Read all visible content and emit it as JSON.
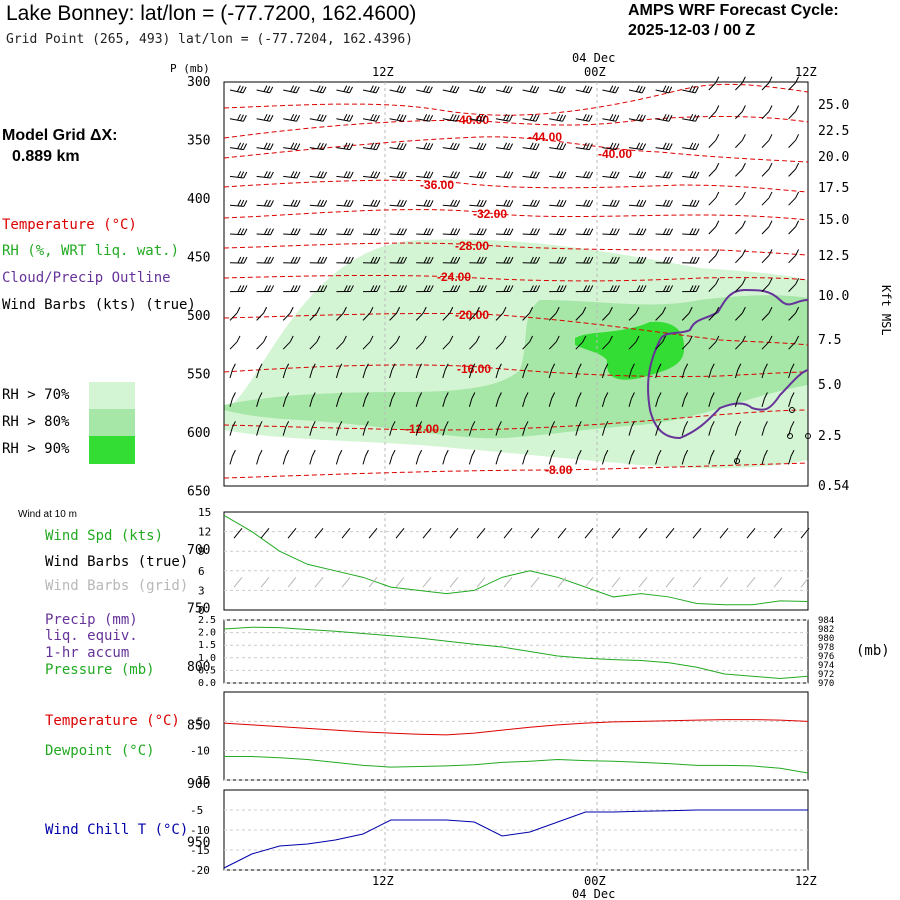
{
  "header": {
    "title": "Lake Bonney:  lat/lon = (-77.7200, 162.4600)",
    "subtitle": "Grid Point (265, 493) lat/lon = (-77.7204, 162.4396)",
    "forecast_line1": "AMPS WRF Forecast Cycle:",
    "forecast_line2": "2025-12-03 / 00  Z",
    "grid_label": "Model Grid ΔX:",
    "grid_value": "0.889 km"
  },
  "colors": {
    "temperature": "#dd0000",
    "rh": "#22aa22",
    "cloud": "#663399",
    "wind": "#000000",
    "wind_grid": "#b8b8b8",
    "rh70": "#d4f5d4",
    "rh80": "#a6e6a6",
    "rh90": "#33dd33",
    "windchill": "#0000aa"
  },
  "legend": {
    "temperature": "Temperature (°C)",
    "rh": "RH (%, WRT liq. wat.)",
    "cloud": "Cloud/Precip Outline",
    "wind": "Wind Barbs (kts) (true)",
    "rh70": "RH > 70%",
    "rh80": "RH > 80%",
    "rh90": "RH > 90%"
  },
  "panels": {
    "wind_header": "Wind at 10 m",
    "wind_spd": "Wind Spd (kts)",
    "wind_barbs_true": "Wind Barbs (true)",
    "wind_barbs_grid": "Wind Barbs (grid)",
    "precip1": "Precip (mm)",
    "precip2": "liq. equiv.",
    "precip3": "1-hr accum",
    "pressure": "Pressure (mb)",
    "pressure_unit": "(mb)",
    "temperature": "Temperature (°C)",
    "dewpoint": "Dewpoint (°C)",
    "windchill": "Wind Chill T (°C)"
  },
  "chart_data": [
    {
      "type": "area",
      "name": "vertical cross-section",
      "x_labels": [
        "12Z",
        "00Z",
        "12Z"
      ],
      "date_label": "04 Dec",
      "ylabel": "P (mb)",
      "ylabel_right": "Kft MSL",
      "pressure_levels": [
        300,
        350,
        400,
        450,
        500,
        550,
        600,
        650,
        700,
        750,
        800,
        850,
        900,
        950
      ],
      "kft_ticks": [
        "25.0",
        "22.5",
        "20.0",
        "17.5",
        "15.0",
        "12.5",
        "10.0",
        "7.5",
        "5.0",
        "2.5",
        "0.54"
      ],
      "temperature_labels": [
        "-40.00",
        "-44.00",
        "-40.00",
        "-36.00",
        "-32.00",
        "-28.00",
        "-24.00",
        "-20.00",
        "-16.00",
        "-12.00",
        "-8.00"
      ]
    },
    {
      "type": "line",
      "name": "wind speed 10 m",
      "ylim": [
        0,
        15
      ],
      "yticks": [
        "15",
        "12",
        "9",
        "6",
        "3",
        "0"
      ],
      "series": [
        {
          "name": "Wind Spd (kts)",
          "values": [
            14.5,
            12,
            9,
            7,
            6,
            5,
            3.5,
            3,
            2.5,
            3,
            5,
            6,
            5,
            3.5,
            2,
            2.5,
            2,
            1,
            0.8,
            0.8,
            1.4,
            1.3
          ]
        }
      ]
    },
    {
      "type": "line",
      "name": "precip and pressure",
      "ylim_left": [
        0,
        2.5
      ],
      "yticks_left": [
        "2.5",
        "2.0",
        "1.5",
        "1.0",
        "0.5",
        "0.0"
      ],
      "ylim_right": [
        970,
        984
      ],
      "yticks_right": [
        "984",
        "982",
        "980",
        "978",
        "976",
        "974",
        "972",
        "970"
      ],
      "series": [
        {
          "name": "Pressure (mb)",
          "values": [
            982.0,
            982.4,
            982.3,
            981.9,
            981.5,
            981.0,
            980.5,
            980.0,
            979.3,
            978.6,
            978.0,
            977.0,
            976.0,
            975.5,
            975.2,
            975.0,
            974.5,
            973.5,
            972.0,
            971.5,
            971.0,
            971.5
          ]
        }
      ]
    },
    {
      "type": "line",
      "name": "temperature and dewpoint",
      "ylim": [
        -15,
        0
      ],
      "yticks": [
        "-5",
        "-10",
        "-15"
      ],
      "series": [
        {
          "name": "Temperature (°C)",
          "values": [
            -5.3,
            -5.6,
            -5.9,
            -6.2,
            -6.5,
            -6.8,
            -7.0,
            -7.2,
            -7.3,
            -7.0,
            -6.5,
            -6.0,
            -5.6,
            -5.3,
            -5.1,
            -5.0,
            -4.9,
            -4.8,
            -4.7,
            -4.7,
            -4.8,
            -5.0
          ]
        },
        {
          "name": "Dewpoint (°C)",
          "values": [
            -11.0,
            -11.0,
            -11.2,
            -11.5,
            -12.0,
            -12.5,
            -12.8,
            -12.7,
            -12.6,
            -12.4,
            -12.0,
            -11.8,
            -11.5,
            -11.7,
            -11.8,
            -12.0,
            -12.2,
            -12.5,
            -12.5,
            -12.6,
            -13.0,
            -13.8
          ]
        }
      ]
    },
    {
      "type": "line",
      "name": "wind chill",
      "ylim": [
        -20,
        0
      ],
      "yticks": [
        "-5",
        "-10",
        "-15",
        "-20"
      ],
      "series": [
        {
          "name": "Wind Chill T (°C)",
          "values": [
            -19.5,
            -16,
            -14,
            -13.5,
            -12.5,
            -11,
            -7.5,
            -7.5,
            -7.5,
            -8,
            -11.5,
            -10.5,
            -8,
            -5.5,
            -5.5,
            -5.3,
            -5.2,
            -5.0,
            -5.0,
            -5.0,
            -5.0,
            -5.0
          ]
        }
      ]
    }
  ]
}
